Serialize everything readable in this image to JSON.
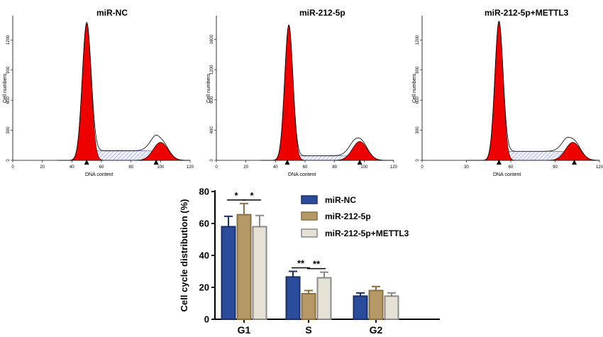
{
  "chart_data": [
    {
      "type": "area",
      "title": "miR-NC",
      "xlabel": "DNA content",
      "ylabel": "Cell numbers",
      "x_ticks": [
        0,
        20,
        40,
        60,
        80,
        100,
        120
      ],
      "x_range": [
        0,
        120
      ],
      "y_ticks": [
        0,
        300,
        600,
        900,
        1200
      ],
      "y_range": [
        0,
        1400
      ],
      "g1_peak": {
        "x": 50,
        "height": 1360,
        "width": 3
      },
      "g2_peak": {
        "x": 100,
        "height": 180,
        "width": 5
      },
      "s_level": 95,
      "s_range": [
        52,
        98
      ],
      "outline_extra": 35,
      "markers": [
        50,
        97
      ]
    },
    {
      "type": "area",
      "title": "miR-212-5p",
      "xlabel": "DNA content",
      "ylabel": "Cell numbers",
      "x_ticks": [
        0,
        20,
        40,
        60,
        80,
        100,
        120
      ],
      "x_range": [
        0,
        120
      ],
      "y_ticks": [
        0,
        400,
        800,
        1200,
        1600
      ],
      "y_range": [
        0,
        1860
      ],
      "g1_peak": {
        "x": 49,
        "height": 1790,
        "width": 2.8
      },
      "g2_peak": {
        "x": 97,
        "height": 250,
        "width": 5
      },
      "s_level": 60,
      "s_range": [
        52,
        94
      ],
      "outline_extra": 45,
      "markers": [
        48,
        97
      ]
    },
    {
      "type": "area",
      "title": "miR-212-5p+METTL3",
      "xlabel": "DNA content",
      "ylabel": "Cell numbers",
      "x_ticks": [
        0,
        30,
        60,
        90,
        120
      ],
      "x_range": [
        0,
        120
      ],
      "y_ticks": [
        0,
        300,
        600,
        900,
        1200
      ],
      "y_range": [
        0,
        1400
      ],
      "g1_peak": {
        "x": 52,
        "height": 1380,
        "width": 2.8
      },
      "g2_peak": {
        "x": 102,
        "height": 180,
        "width": 5
      },
      "s_level": 90,
      "s_range": [
        55,
        99
      ],
      "outline_extra": 35,
      "markers": [
        52,
        103
      ]
    },
    {
      "type": "bar",
      "categories": [
        "G1",
        "S",
        "G2"
      ],
      "ylabel": "Cell cycle distribution (%)",
      "ylim": [
        0,
        80
      ],
      "y_ticks": [
        0,
        20,
        40,
        60,
        80
      ],
      "series": [
        {
          "name": "miR-NC",
          "values": [
            58,
            26.5,
            14.5
          ],
          "errors": [
            6.5,
            3.5,
            2.0
          ],
          "color": "#2b4c9b"
        },
        {
          "name": "miR-212-5p",
          "values": [
            65.5,
            16,
            18
          ],
          "errors": [
            7.0,
            2.0,
            2.5
          ],
          "color": "#b59a68"
        },
        {
          "name": "miR-212-5p+METTL3",
          "values": [
            58,
            26,
            14.5
          ],
          "errors": [
            7.0,
            3.5,
            2.0
          ],
          "color": "#e6e1d5"
        }
      ],
      "significance": [
        {
          "category": 0,
          "pair": [
            0,
            1
          ],
          "label": "*"
        },
        {
          "category": 0,
          "pair": [
            1,
            2
          ],
          "label": "*"
        },
        {
          "category": 1,
          "pair": [
            0,
            1
          ],
          "label": "**"
        },
        {
          "category": 1,
          "pair": [
            1,
            2
          ],
          "label": "**"
        }
      ]
    }
  ]
}
